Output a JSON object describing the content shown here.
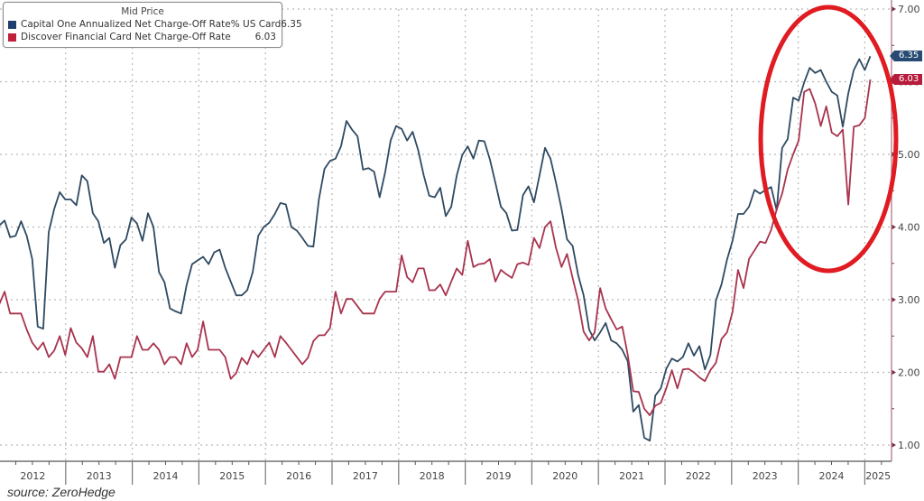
{
  "chart_data": {
    "type": "line",
    "title": "Mid Price",
    "xlabel": "",
    "ylabel": "",
    "source": "source: ZeroHedge",
    "x_range": {
      "start": "2012-01",
      "end": "2025-02",
      "frequency": "monthly"
    },
    "x_tick_labels": [
      "2012",
      "2013",
      "2014",
      "2015",
      "2016",
      "2017",
      "2018",
      "2019",
      "2020",
      "2021",
      "2022",
      "2023",
      "2024",
      "2025"
    ],
    "y_tick_labels": [
      "1.00",
      "2.00",
      "3.00",
      "4.00",
      "5.00",
      "6.00",
      "7.00"
    ],
    "y_ticks": [
      1,
      2,
      3,
      4,
      5,
      6,
      7
    ],
    "ylim": [
      1,
      7
    ],
    "y_axis_side": "right",
    "grid": true,
    "legend_position": "top-left",
    "annotation": "red ellipse highlighting 2023–2025",
    "series": [
      {
        "name": "Capital One Annualized Net Charge-Off Rate% US Card",
        "last_value": "6.35",
        "color": "#2e4a62",
        "swatch": "#1f3f70",
        "tag_color": "#264a72",
        "values": [
          4.02,
          4.09,
          3.86,
          3.88,
          4.08,
          3.88,
          3.56,
          2.63,
          2.6,
          3.93,
          4.25,
          4.48,
          4.38,
          4.38,
          4.3,
          4.71,
          4.63,
          4.19,
          4.08,
          3.78,
          3.85,
          3.44,
          3.75,
          3.83,
          4.13,
          4.05,
          3.81,
          4.19,
          4.0,
          3.38,
          3.24,
          2.88,
          2.84,
          2.81,
          3.2,
          3.49,
          3.54,
          3.59,
          3.49,
          3.65,
          3.69,
          3.44,
          3.25,
          3.06,
          3.06,
          3.13,
          3.38,
          3.88,
          4.0,
          4.06,
          4.18,
          4.33,
          4.31,
          4.0,
          3.95,
          3.85,
          3.74,
          3.73,
          4.38,
          4.8,
          4.91,
          4.94,
          5.11,
          5.46,
          5.34,
          5.25,
          4.79,
          4.81,
          4.76,
          4.41,
          4.75,
          5.19,
          5.39,
          5.35,
          5.19,
          5.31,
          5.06,
          4.71,
          4.43,
          4.41,
          4.54,
          4.15,
          4.28,
          4.71,
          4.99,
          5.11,
          4.94,
          5.19,
          5.18,
          4.93,
          4.61,
          4.28,
          4.19,
          3.95,
          3.96,
          4.44,
          4.56,
          4.34,
          4.71,
          5.09,
          4.94,
          4.61,
          4.25,
          3.83,
          3.74,
          3.34,
          3.06,
          2.59,
          2.44,
          2.55,
          2.68,
          2.44,
          2.4,
          2.31,
          2.15,
          1.46,
          1.55,
          1.1,
          1.06,
          1.68,
          1.78,
          2.05,
          2.19,
          2.15,
          2.21,
          2.4,
          2.23,
          2.36,
          2.04,
          2.24,
          2.99,
          3.21,
          3.55,
          3.81,
          4.18,
          4.18,
          4.28,
          4.51,
          4.46,
          4.51,
          4.55,
          4.23,
          5.09,
          5.21,
          5.78,
          5.74,
          5.99,
          6.19,
          6.12,
          6.16,
          6.0,
          5.86,
          5.81,
          5.38,
          5.84,
          6.16,
          6.31,
          6.16,
          6.35
        ]
      },
      {
        "name": "Discover Financial Card Net Charge-Off Rate",
        "last_value": "6.03",
        "color": "#a8334e",
        "swatch": "#c0203a",
        "tag_color": "#b71c3c",
        "values": [
          2.93,
          3.11,
          2.81,
          2.81,
          2.81,
          2.59,
          2.41,
          2.31,
          2.41,
          2.21,
          2.3,
          2.5,
          2.24,
          2.61,
          2.41,
          2.33,
          2.21,
          2.5,
          2.01,
          2.01,
          2.11,
          1.91,
          2.21,
          2.21,
          2.21,
          2.5,
          2.31,
          2.31,
          2.4,
          2.31,
          2.11,
          2.21,
          2.21,
          2.11,
          2.4,
          2.21,
          2.31,
          2.7,
          2.31,
          2.31,
          2.31,
          2.21,
          1.91,
          1.99,
          2.2,
          2.11,
          2.3,
          2.21,
          2.31,
          2.41,
          2.21,
          2.5,
          2.41,
          2.31,
          2.21,
          2.11,
          2.2,
          2.43,
          2.51,
          2.51,
          2.61,
          3.11,
          2.81,
          3.01,
          3.01,
          2.91,
          2.81,
          2.81,
          2.81,
          3.01,
          3.11,
          3.11,
          3.11,
          3.61,
          3.31,
          3.24,
          3.43,
          3.43,
          3.13,
          3.13,
          3.21,
          3.06,
          3.25,
          3.43,
          3.34,
          3.81,
          3.45,
          3.49,
          3.5,
          3.56,
          3.25,
          3.41,
          3.35,
          3.3,
          3.49,
          3.51,
          3.48,
          3.85,
          3.71,
          4.0,
          4.08,
          3.71,
          3.45,
          3.63,
          3.3,
          2.99,
          2.56,
          2.44,
          2.55,
          3.16,
          2.88,
          2.73,
          2.59,
          2.63,
          2.24,
          1.74,
          1.73,
          1.5,
          1.41,
          1.54,
          1.58,
          1.78,
          2.03,
          1.78,
          2.04,
          2.05,
          2.0,
          1.93,
          1.88,
          2.03,
          2.13,
          2.46,
          2.55,
          2.83,
          3.41,
          3.16,
          3.56,
          3.68,
          3.8,
          3.78,
          3.96,
          4.24,
          4.46,
          4.79,
          5.0,
          5.19,
          5.86,
          5.9,
          5.7,
          5.39,
          5.66,
          5.3,
          5.25,
          5.34,
          4.31,
          5.38,
          5.4,
          5.5,
          6.03
        ]
      }
    ]
  }
}
